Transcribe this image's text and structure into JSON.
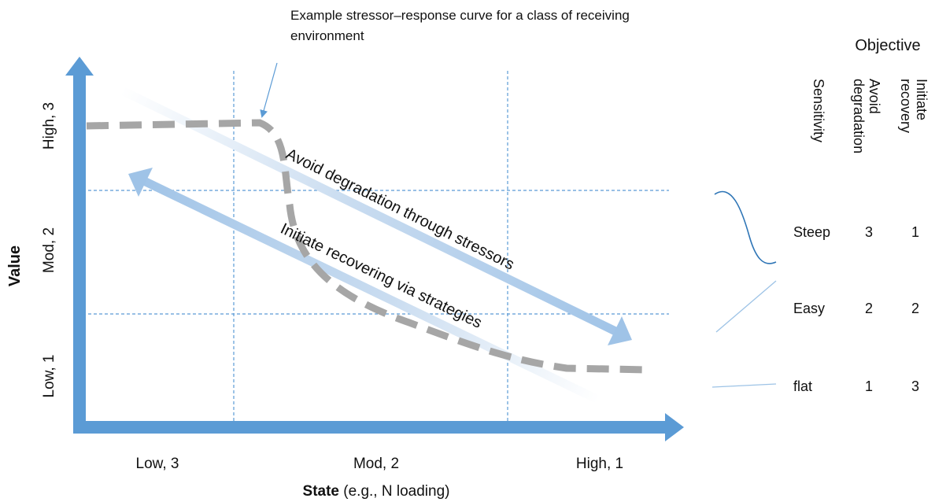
{
  "annotation": {
    "line1": "Example stressor–response curve for a class of receiving",
    "line2": "environment"
  },
  "y_axis": {
    "title": "Value",
    "ticks": [
      "Low, 1",
      "Mod, 2",
      "High, 3"
    ]
  },
  "x_axis": {
    "title_bold": "State",
    "title_rest": " (e.g., N loading)",
    "ticks": [
      "Low, 3",
      "Mod, 2",
      "High, 1"
    ]
  },
  "arrows": {
    "degradation": "Avoid degradation through stressors",
    "recovery": "Initiate recovering via strategies"
  },
  "table": {
    "objective_header": "Objective",
    "sensitivity_header": "Sensitivity",
    "col1_line1": "Avoid",
    "col1_line2": "degradation",
    "col2_line1": "Initiate",
    "col2_line2": "recovery",
    "rows": [
      {
        "sensitivity": "Steep",
        "avoid": "3",
        "initiate": "1"
      },
      {
        "sensitivity": "Easy",
        "avoid": "2",
        "initiate": "2"
      },
      {
        "sensitivity": "flat",
        "avoid": "1",
        "initiate": "3"
      }
    ]
  },
  "colors": {
    "axis": "#5b9bd5",
    "curve": "#a6a6a6",
    "grid": "#5b9bd5",
    "icon_line": "#2e75b6"
  }
}
